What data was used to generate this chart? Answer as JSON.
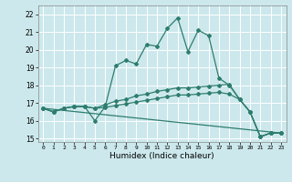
{
  "xlabel": "Humidex (Indice chaleur)",
  "bg_color": "#cce8ec",
  "grid_color": "#ffffff",
  "line_color": "#2e7d6e",
  "xlim": [
    -0.5,
    23.5
  ],
  "ylim": [
    14.8,
    22.5
  ],
  "xticks": [
    0,
    1,
    2,
    3,
    4,
    5,
    6,
    7,
    8,
    9,
    10,
    11,
    12,
    13,
    14,
    15,
    16,
    17,
    18,
    19,
    20,
    21,
    22,
    23
  ],
  "yticks": [
    15,
    16,
    17,
    18,
    19,
    20,
    21,
    22
  ],
  "line0_x": [
    0,
    1,
    2,
    3,
    4,
    5,
    6,
    7,
    8,
    9,
    10,
    11,
    12,
    13,
    14,
    15,
    16,
    17,
    18,
    19,
    20,
    21,
    22,
    23
  ],
  "line0_y": [
    16.7,
    16.5,
    16.7,
    16.8,
    16.8,
    16.0,
    16.8,
    19.1,
    19.4,
    19.2,
    20.3,
    20.2,
    21.2,
    21.8,
    19.9,
    21.1,
    20.8,
    18.4,
    18.0,
    17.2,
    16.5,
    15.1,
    15.3,
    15.3
  ],
  "line1_x": [
    0,
    1,
    2,
    3,
    4,
    5,
    6,
    7,
    8,
    9,
    10,
    11,
    12,
    13,
    14,
    15,
    16,
    17,
    18,
    19,
    20,
    21,
    22,
    23
  ],
  "line1_y": [
    16.7,
    16.5,
    16.7,
    16.8,
    16.8,
    16.7,
    16.9,
    17.1,
    17.2,
    17.4,
    17.5,
    17.65,
    17.75,
    17.85,
    17.85,
    17.9,
    17.95,
    18.0,
    18.05,
    17.2,
    16.5,
    15.1,
    15.3,
    15.3
  ],
  "line2_x": [
    0,
    1,
    2,
    3,
    4,
    5,
    6,
    7,
    8,
    9,
    10,
    11,
    12,
    13,
    14,
    15,
    16,
    17,
    18,
    19,
    20,
    21,
    22,
    23
  ],
  "line2_y": [
    16.7,
    16.5,
    16.7,
    16.8,
    16.8,
    16.7,
    16.75,
    16.85,
    16.95,
    17.05,
    17.15,
    17.25,
    17.35,
    17.45,
    17.45,
    17.5,
    17.55,
    17.6,
    17.5,
    17.2,
    16.5,
    15.1,
    15.3,
    15.3
  ],
  "line3_x": [
    0,
    23
  ],
  "line3_y": [
    16.7,
    15.3
  ]
}
